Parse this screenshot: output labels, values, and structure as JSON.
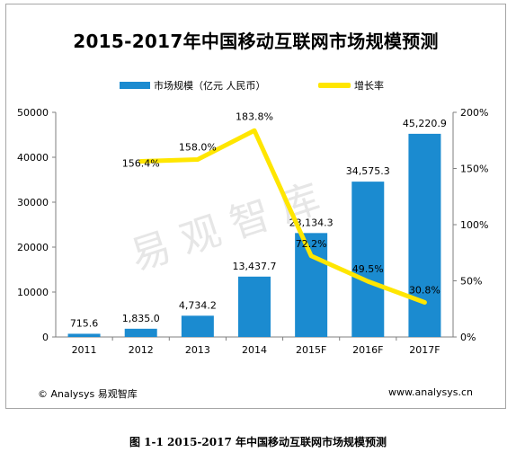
{
  "title": "2015-2017年中国移动互联网市场规模预测",
  "legend": {
    "bar_label": "市场规模（亿元 人民币）",
    "line_label": "增长率"
  },
  "watermark": "易观智库",
  "footer": {
    "left": "© Analysys 易观智库",
    "right": "www.analysys.cn"
  },
  "caption": "图 1-1 2015-2017 年中国移动互联网市场规模预测",
  "colors": {
    "bar": "#1b8bd0",
    "line": "#ffe600"
  },
  "chart_data": {
    "type": "bar",
    "categories": [
      "2011",
      "2012",
      "2013",
      "2014",
      "2015F",
      "2016F",
      "2017F"
    ],
    "series": [
      {
        "name": "市场规模（亿元 人民币）",
        "type": "bar",
        "axis": "left",
        "values": [
          715.6,
          1835.0,
          4734.2,
          13437.7,
          23134.3,
          34575.3,
          45220.9
        ],
        "labels": [
          "715.6",
          "1,835.0",
          "4,734.2",
          "13,437.7",
          "23,134.3",
          "34,575.3",
          "45,220.9"
        ]
      },
      {
        "name": "增长率",
        "type": "line",
        "axis": "right",
        "values": [
          null,
          156.4,
          158.0,
          183.8,
          72.2,
          49.5,
          30.8
        ],
        "labels": [
          "",
          "156.4%",
          "158.0%",
          "183.8%",
          "72.2%",
          "49.5%",
          "30.8%"
        ]
      }
    ],
    "y_left": {
      "min": 0,
      "max": 50000,
      "ticks": [
        "0",
        "10000",
        "20000",
        "30000",
        "40000",
        "50000"
      ]
    },
    "y_right": {
      "min": 0,
      "max": 200,
      "ticks": [
        "0%",
        "50%",
        "100%",
        "150%",
        "200%"
      ]
    },
    "grid": false,
    "legend_position": "top"
  }
}
